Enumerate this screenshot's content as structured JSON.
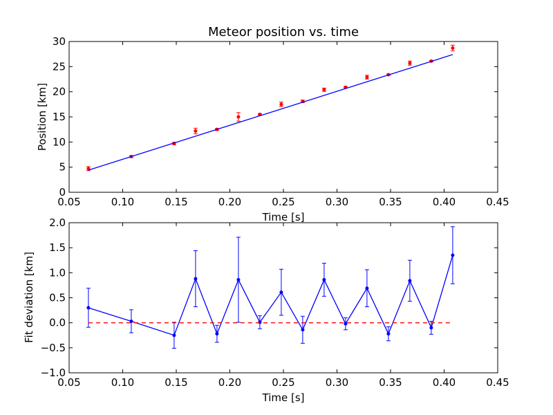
{
  "chart_data": [
    {
      "type": "scatter",
      "title": "Meteor position vs. time",
      "xlabel": "Time [s]",
      "ylabel": "Position [km]",
      "xlim": [
        0.05,
        0.45
      ],
      "ylim": [
        0,
        30
      ],
      "xticks": [
        0.05,
        0.1,
        0.15,
        0.2,
        0.25,
        0.3,
        0.35,
        0.4,
        0.45
      ],
      "xtick_labels": [
        "0.05",
        "0.10",
        "0.15",
        "0.20",
        "0.25",
        "0.30",
        "0.35",
        "0.40",
        "0.45"
      ],
      "yticks": [
        0,
        5,
        10,
        15,
        20,
        25,
        30
      ],
      "ytick_labels": [
        "0",
        "5",
        "10",
        "15",
        "20",
        "25",
        "30"
      ],
      "grid": false,
      "series": [
        {
          "kind": "errorbar-points",
          "color": "#ff0000",
          "x": [
            0.068,
            0.108,
            0.148,
            0.168,
            0.188,
            0.208,
            0.228,
            0.248,
            0.268,
            0.288,
            0.308,
            0.328,
            0.348,
            0.368,
            0.388,
            0.408
          ],
          "y": [
            4.7,
            7.1,
            9.7,
            12.2,
            12.5,
            15.0,
            15.5,
            17.5,
            18.1,
            20.4,
            20.9,
            22.9,
            23.4,
            25.7,
            26.1,
            28.7
          ],
          "err": [
            0.4,
            0.2,
            0.25,
            0.55,
            0.2,
            0.85,
            0.15,
            0.45,
            0.25,
            0.33,
            0.12,
            0.37,
            0.14,
            0.41,
            0.13,
            0.57
          ]
        },
        {
          "kind": "fit-line",
          "color": "#0000ff",
          "x": [
            0.068,
            0.408
          ],
          "y": [
            4.4,
            27.4
          ]
        }
      ]
    },
    {
      "type": "line",
      "title": "",
      "xlabel": "Time [s]",
      "ylabel": "Fit deviation [km]",
      "xlim": [
        0.05,
        0.45
      ],
      "ylim": [
        -1.0,
        2.0
      ],
      "xticks": [
        0.05,
        0.1,
        0.15,
        0.2,
        0.25,
        0.3,
        0.35,
        0.4,
        0.45
      ],
      "xtick_labels": [
        "0.05",
        "0.10",
        "0.15",
        "0.20",
        "0.25",
        "0.30",
        "0.35",
        "0.40",
        "0.45"
      ],
      "yticks": [
        -1.0,
        -0.5,
        0.0,
        0.5,
        1.0,
        1.5,
        2.0
      ],
      "ytick_labels": [
        "−1.0",
        "−0.5",
        "0.0",
        "0.5",
        "1.0",
        "1.5",
        "2.0"
      ],
      "grid": false,
      "series": [
        {
          "kind": "errorbar-line",
          "color": "#0000ff",
          "x": [
            0.068,
            0.108,
            0.148,
            0.168,
            0.188,
            0.208,
            0.228,
            0.248,
            0.268,
            0.288,
            0.308,
            0.328,
            0.348,
            0.368,
            0.388,
            0.408
          ],
          "y": [
            0.3,
            0.03,
            -0.25,
            0.88,
            -0.22,
            0.86,
            0.01,
            0.61,
            -0.14,
            0.86,
            -0.02,
            0.69,
            -0.22,
            0.84,
            -0.1,
            1.35
          ],
          "err": [
            0.39,
            0.23,
            0.26,
            0.56,
            0.17,
            0.85,
            0.13,
            0.46,
            0.27,
            0.33,
            0.12,
            0.37,
            0.14,
            0.41,
            0.13,
            0.57
          ]
        },
        {
          "kind": "zero-line",
          "color": "#ff0000",
          "dashed": true,
          "x": [
            0.068,
            0.408
          ],
          "y": [
            0.0,
            0.0
          ]
        }
      ]
    }
  ]
}
